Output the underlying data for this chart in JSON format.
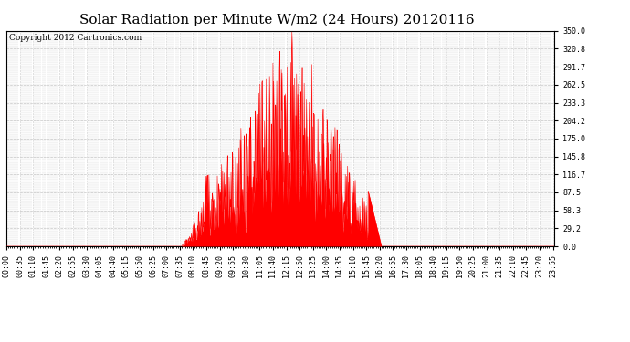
{
  "title": "Solar Radiation per Minute W/m2 (24 Hours) 20120116",
  "copyright_text": "Copyright 2012 Cartronics.com",
  "y_min": 0.0,
  "y_max": 350.0,
  "y_ticks": [
    0.0,
    29.2,
    58.3,
    87.5,
    116.7,
    145.8,
    175.0,
    204.2,
    233.3,
    262.5,
    291.7,
    320.8,
    350.0
  ],
  "bar_color": "#FF0000",
  "background_color": "#FFFFFF",
  "grid_color": "#C8C8C8",
  "white_dash_color": "#C8C8C8",
  "title_fontsize": 11,
  "copyright_fontsize": 6.5,
  "tick_fontsize": 6.0,
  "total_minutes": 1440,
  "x_tick_interval": 35,
  "sunrise_minute": 460,
  "sunset_minute": 985
}
